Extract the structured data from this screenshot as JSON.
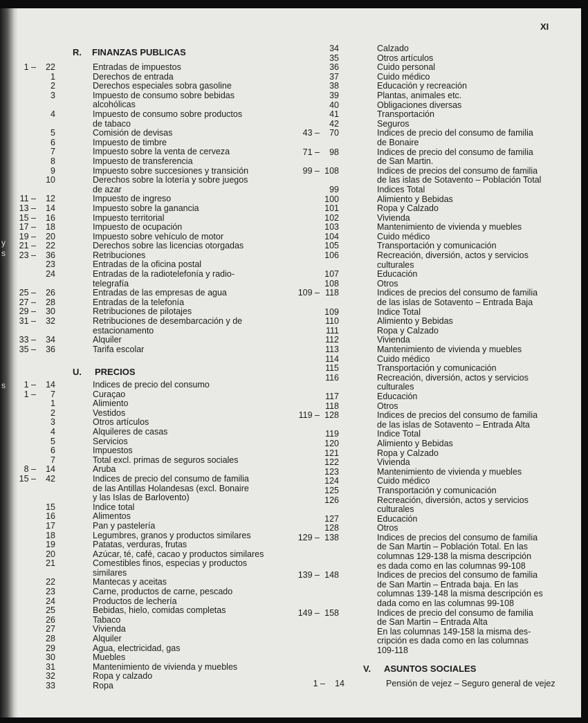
{
  "page_number": "XI",
  "margin_fragments": [
    "y",
    "s",
    "s"
  ],
  "left_column": {
    "sections": [
      {
        "letter": "R.",
        "title": "FINANZAS PUBLICAS",
        "entries": [
          {
            "a": "1 –",
            "b": "22",
            "lines": [
              "Entradas de impuestos"
            ]
          },
          {
            "a": "",
            "b": "1",
            "lines": [
              "Derechos de entrada"
            ]
          },
          {
            "a": "",
            "b": "2",
            "lines": [
              "Derechos especiales sobra gasoline"
            ]
          },
          {
            "a": "",
            "b": "3",
            "lines": [
              "Impuesto de consumo sobre bebidas",
              "alcohólicas"
            ]
          },
          {
            "a": "",
            "b": "4",
            "lines": [
              "Impuesto de consumo sobre productos",
              "de tabaco"
            ]
          },
          {
            "a": "",
            "b": "5",
            "lines": [
              "Comisión de devisas"
            ]
          },
          {
            "a": "",
            "b": "6",
            "lines": [
              "Impuesto de timbre"
            ]
          },
          {
            "a": "",
            "b": "7",
            "lines": [
              "Impuesto sobre la venta de cerveza"
            ]
          },
          {
            "a": "",
            "b": "8",
            "lines": [
              "Impuesto de transferencia"
            ]
          },
          {
            "a": "",
            "b": "9",
            "lines": [
              "Impuesto sobre succesiones y transición"
            ]
          },
          {
            "a": "",
            "b": "10",
            "lines": [
              "Derechos sobre la lotería y sobre juegos",
              "de azar"
            ]
          },
          {
            "a": "11 –",
            "b": "12",
            "lines": [
              "Impuesto de ingreso"
            ]
          },
          {
            "a": "13 –",
            "b": "14",
            "lines": [
              "Impuesto sobre la ganancia"
            ]
          },
          {
            "a": "15 –",
            "b": "16",
            "lines": [
              "Impuesto territorial"
            ]
          },
          {
            "a": "17 –",
            "b": "18",
            "lines": [
              "Impuesto de ocupación"
            ]
          },
          {
            "a": "19 –",
            "b": "20",
            "lines": [
              "Impuesto sobre vehículo de motor"
            ]
          },
          {
            "a": "21 –",
            "b": "22",
            "lines": [
              "Derechos sobre las licencias otorgadas"
            ]
          },
          {
            "a": "23 –",
            "b": "36",
            "lines": [
              "Retribuciones"
            ]
          },
          {
            "a": "",
            "b": "23",
            "lines": [
              "Entradas de la oficina postal"
            ]
          },
          {
            "a": "",
            "b": "24",
            "lines": [
              "Entradas de la radiotelefonía y radio-",
              "telegrafía"
            ]
          },
          {
            "a": "25 –",
            "b": "26",
            "lines": [
              "Entradas de las empresas de agua"
            ]
          },
          {
            "a": "27 –",
            "b": "28",
            "lines": [
              "Entradas de la telefonía"
            ]
          },
          {
            "a": "29 –",
            "b": "30",
            "lines": [
              "Retribuciones de pilotajes"
            ]
          },
          {
            "a": "31 –",
            "b": "32",
            "lines": [
              "Retribuciones de desembarcación y de",
              "estacionamento"
            ]
          },
          {
            "a": "33 –",
            "b": "34",
            "lines": [
              "Alquiler"
            ]
          },
          {
            "a": "35 –",
            "b": "36",
            "lines": [
              "Tarifa escolar"
            ]
          }
        ]
      },
      {
        "letter": "U.",
        "title": "PRECIOS",
        "entries": [
          {
            "a": "1 –",
            "b": "14",
            "lines": [
              "Indices de precio del consumo"
            ]
          },
          {
            "a": "1 –",
            "b": "7",
            "lines": [
              "Curaçao"
            ]
          },
          {
            "a": "",
            "b": "1",
            "lines": [
              "Alimiento"
            ]
          },
          {
            "a": "",
            "b": "2",
            "lines": [
              "Vestidos"
            ]
          },
          {
            "a": "",
            "b": "3",
            "lines": [
              "Otros artículos"
            ]
          },
          {
            "a": "",
            "b": "4",
            "lines": [
              "Alquileres de casas"
            ]
          },
          {
            "a": "",
            "b": "5",
            "lines": [
              "Servicios"
            ]
          },
          {
            "a": "",
            "b": "6",
            "lines": [
              "Impuestos"
            ]
          },
          {
            "a": "",
            "b": "7",
            "lines": [
              "Total excl. primas de seguros sociales"
            ]
          },
          {
            "a": "8 –",
            "b": "14",
            "lines": [
              "Aruba"
            ]
          },
          {
            "a": "15 –",
            "b": "42",
            "lines": [
              "Indices de precio del consumo de familia",
              "de las Antillas Holandesas (excl. Bonaire",
              "y las Islas de Barlovento)"
            ]
          },
          {
            "a": "",
            "b": "15",
            "lines": [
              "Indice total"
            ]
          },
          {
            "a": "",
            "b": "16",
            "lines": [
              "Alimentos"
            ]
          },
          {
            "a": "",
            "b": "17",
            "lines": [
              "Pan y pastelería"
            ]
          },
          {
            "a": "",
            "b": "18",
            "lines": [
              "Legumbres, granos y productos similares"
            ]
          },
          {
            "a": "",
            "b": "19",
            "lines": [
              "Patatas, verduras, frutas"
            ]
          },
          {
            "a": "",
            "b": "20",
            "lines": [
              "Azúcar, té, café, cacao y productos similares"
            ]
          },
          {
            "a": "",
            "b": "21",
            "lines": [
              "Comestibles finos, especias y productos",
              "similares"
            ]
          },
          {
            "a": "",
            "b": "22",
            "lines": [
              "Mantecas y aceitas"
            ]
          },
          {
            "a": "",
            "b": "23",
            "lines": [
              "Carne, productos de carne, pescado"
            ]
          },
          {
            "a": "",
            "b": "24",
            "lines": [
              "Productos de lechería"
            ]
          },
          {
            "a": "",
            "b": "25",
            "lines": [
              "Bebidas, hielo, comidas completas"
            ]
          },
          {
            "a": "",
            "b": "26",
            "lines": [
              "Tabaco"
            ]
          },
          {
            "a": "",
            "b": "27",
            "lines": [
              "Vivienda"
            ]
          },
          {
            "a": "",
            "b": "28",
            "lines": [
              "Alquiler"
            ]
          },
          {
            "a": "",
            "b": "29",
            "lines": [
              "Agua, electricidad, gas"
            ]
          },
          {
            "a": "",
            "b": "30",
            "lines": [
              "Muebles"
            ]
          },
          {
            "a": "",
            "b": "31",
            "lines": [
              "Mantenimiento de vivienda y muebles"
            ]
          },
          {
            "a": "",
            "b": "32",
            "lines": [
              "Ropa y calzado"
            ]
          },
          {
            "a": "",
            "b": "33",
            "lines": [
              "Ropa"
            ]
          }
        ]
      }
    ]
  },
  "right_column": {
    "entries": [
      {
        "a": "",
        "b": "34",
        "lines": [
          "Calzado"
        ]
      },
      {
        "a": "",
        "b": "35",
        "lines": [
          "Otros artículos"
        ]
      },
      {
        "a": "",
        "b": "36",
        "lines": [
          "Cuido personal"
        ]
      },
      {
        "a": "",
        "b": "37",
        "lines": [
          "Cuido médico"
        ]
      },
      {
        "a": "",
        "b": "38",
        "lines": [
          "Educación y recreación"
        ]
      },
      {
        "a": "",
        "b": "39",
        "lines": [
          "Plantas, animales etc."
        ]
      },
      {
        "a": "",
        "b": "40",
        "lines": [
          "Obligaciones diversas"
        ]
      },
      {
        "a": "",
        "b": "41",
        "lines": [
          "Transportación"
        ]
      },
      {
        "a": "",
        "b": "42",
        "lines": [
          "Seguros"
        ]
      },
      {
        "a": "43 –",
        "b": "70",
        "lines": [
          "Indices de precio del consumo de familia",
          "de Bonaire"
        ]
      },
      {
        "a": "71 –",
        "b": "98",
        "lines": [
          "Indices de precio del consumo de familia",
          "de San Martin."
        ]
      },
      {
        "a": "99 –",
        "b": "108",
        "lines": [
          "Indices de precios del consumo de familia",
          "de las islas de Sotavento – Población Total"
        ]
      },
      {
        "a": "",
        "b": "99",
        "lines": [
          "Indices Total"
        ]
      },
      {
        "a": "",
        "b": "100",
        "lines": [
          "Alimiento y Bebidas"
        ]
      },
      {
        "a": "",
        "b": "101",
        "lines": [
          "Ropa y Calzado"
        ]
      },
      {
        "a": "",
        "b": "102",
        "lines": [
          "Vivienda"
        ]
      },
      {
        "a": "",
        "b": "103",
        "lines": [
          "Mantenimiento de vivienda y muebles"
        ]
      },
      {
        "a": "",
        "b": "104",
        "lines": [
          "Cuido médico"
        ]
      },
      {
        "a": "",
        "b": "105",
        "lines": [
          "Transportación y comunicación"
        ]
      },
      {
        "a": "",
        "b": "106",
        "lines": [
          "Recreación, diversión, actos y servicios",
          "culturales"
        ]
      },
      {
        "a": "",
        "b": "107",
        "lines": [
          "Educación"
        ]
      },
      {
        "a": "",
        "b": "108",
        "lines": [
          "Otros"
        ]
      },
      {
        "a": "109 –",
        "b": "118",
        "lines": [
          "Indices de precios del consumo de familia",
          "de las islas de Sotavento – Entrada Baja"
        ]
      },
      {
        "a": "",
        "b": "109",
        "lines": [
          "Indice Total"
        ]
      },
      {
        "a": "",
        "b": "110",
        "lines": [
          "Alimiento y Bebidas"
        ]
      },
      {
        "a": "",
        "b": "111",
        "lines": [
          "Ropa y Calzado"
        ]
      },
      {
        "a": "",
        "b": "112",
        "lines": [
          "Vivienda"
        ]
      },
      {
        "a": "",
        "b": "113",
        "lines": [
          "Mantenimiento de vivienda y muebles"
        ]
      },
      {
        "a": "",
        "b": "114",
        "lines": [
          "Cuido médico"
        ]
      },
      {
        "a": "",
        "b": "115",
        "lines": [
          "Transportación y comunicación"
        ]
      },
      {
        "a": "",
        "b": "116",
        "lines": [
          "Recreación, diversión, actos y servicios",
          "culturales"
        ]
      },
      {
        "a": "",
        "b": "117",
        "lines": [
          "Educación"
        ]
      },
      {
        "a": "",
        "b": "118",
        "lines": [
          "Otros"
        ]
      },
      {
        "a": "119 –",
        "b": "128",
        "lines": [
          "Indices de precios del consumo de familia",
          "de las islas de Sotavento – Entrada Alta"
        ]
      },
      {
        "a": "",
        "b": "119",
        "lines": [
          "Indice Total"
        ]
      },
      {
        "a": "",
        "b": "120",
        "lines": [
          "Alimiento y Bebidas"
        ]
      },
      {
        "a": "",
        "b": "121",
        "lines": [
          "Ropa y Calzado"
        ]
      },
      {
        "a": "",
        "b": "122",
        "lines": [
          "Vivienda"
        ]
      },
      {
        "a": "",
        "b": "123",
        "lines": [
          "Mantenimiento de vivienda y muebles"
        ]
      },
      {
        "a": "",
        "b": "124",
        "lines": [
          "Cuido médico"
        ]
      },
      {
        "a": "",
        "b": "125",
        "lines": [
          "Transportación y comunicación"
        ]
      },
      {
        "a": "",
        "b": "126",
        "lines": [
          "Recreación, diversión, actos y servicios",
          "culturales"
        ]
      },
      {
        "a": "",
        "b": "127",
        "lines": [
          "Educación"
        ]
      },
      {
        "a": "",
        "b": "128",
        "lines": [
          "Otros"
        ]
      },
      {
        "a": "129 –",
        "b": "138",
        "lines": [
          "Indices de precios del consumo de familia",
          "de San Martin – Población Total. En las",
          "columnas 129-138 la misma descripción",
          "es dada como en las columnas 99-108"
        ]
      },
      {
        "a": "139 –",
        "b": "148",
        "lines": [
          "Indices de precios del consumo de familia",
          "de San Martin – Entrada baja. En las",
          "columnas 139-148 la misma descripción es",
          "dada como en las columnas 99-108"
        ]
      },
      {
        "a": "149 –",
        "b": "158",
        "lines": [
          "Indices de precio del consumo de familia",
          "de San Martin – Entrada Alta",
          "En las columnas 149-158 la misma des-",
          "cripción es dada como en las columnas",
          "109-118"
        ]
      }
    ],
    "section": {
      "letter": "V.",
      "title": "ASUNTOS SOCIALES",
      "entries": [
        {
          "a": "1 –",
          "b": "14",
          "lines": [
            "Pensión de vejez – Seguro general de vejez"
          ]
        }
      ]
    }
  }
}
